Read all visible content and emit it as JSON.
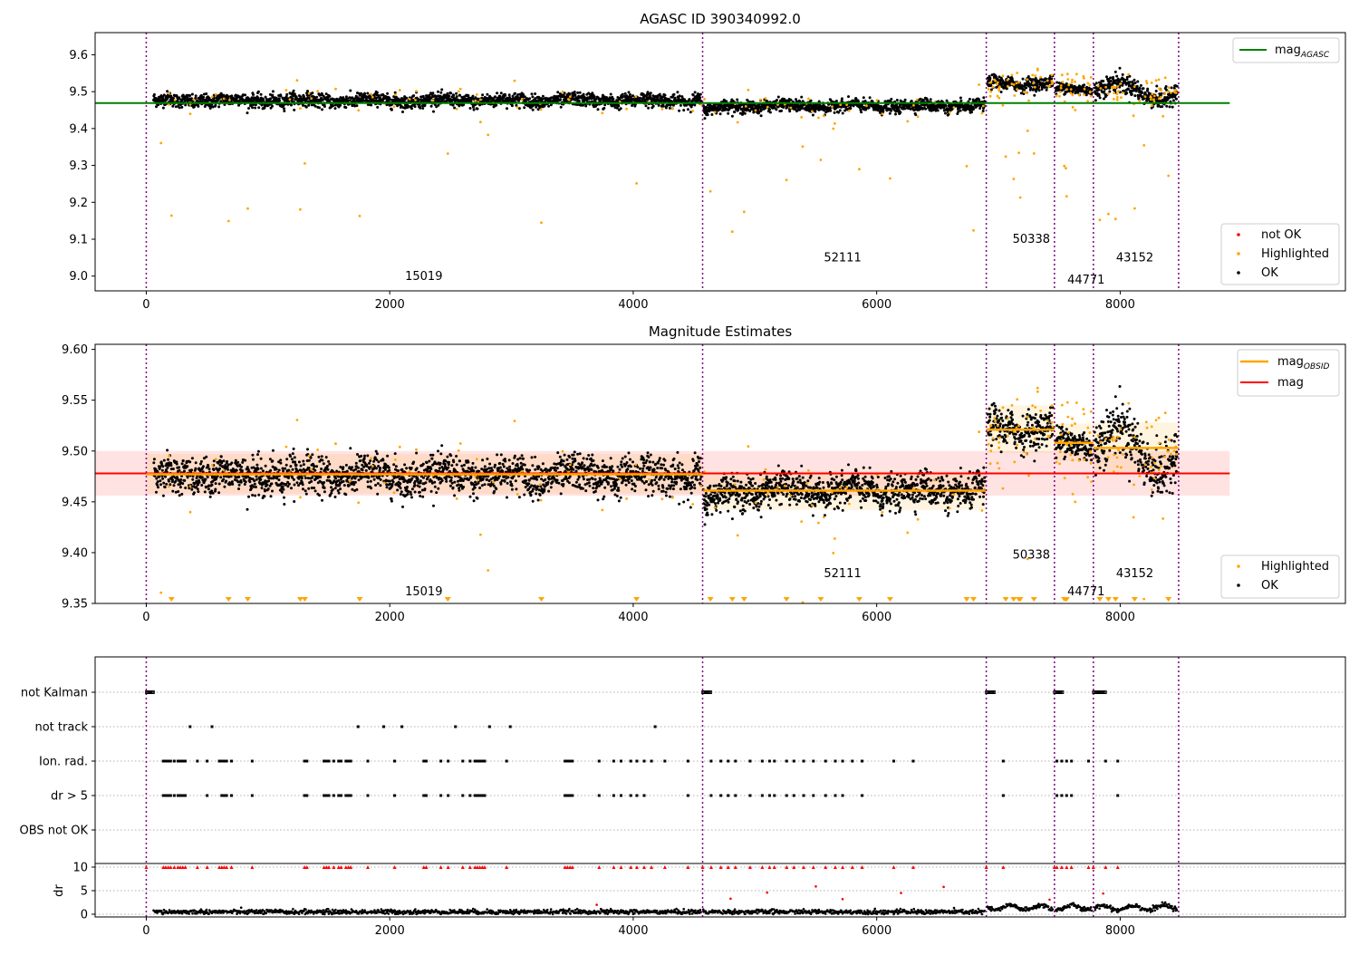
{
  "colors": {
    "ok": "#000000",
    "highlighted": "#ffa500",
    "not_ok": "#ff0000",
    "agasc_line": "#008000",
    "obsid_line": "#ffa500",
    "mag_line": "#ff0000",
    "mag_band": "#ffcccc",
    "obs_divider": "#800080",
    "grid": "#b0b0b0"
  },
  "chart_data": [
    {
      "type": "scatter",
      "title": "AGASC ID 390340992.0",
      "xlim": [
        -420,
        9850
      ],
      "ylim": [
        8.96,
        9.66
      ],
      "xticks": [
        0,
        2000,
        4000,
        6000,
        8000
      ],
      "yticks": [
        9.0,
        9.1,
        9.2,
        9.3,
        9.4,
        9.5,
        9.6
      ],
      "ytick_labels": [
        "9.0",
        "9.1",
        "9.2",
        "9.3",
        "9.4",
        "9.5",
        "9.6"
      ],
      "line_label": "mag_AGASC",
      "line_label_main": "mag",
      "line_label_sub": "AGASC",
      "mag_agasc": 9.469,
      "legend_points": [
        "not OK",
        "Highlighted",
        "OK"
      ],
      "legend_placement": "bottom-right"
    },
    {
      "type": "scatter",
      "title": "Magnitude Estimates",
      "xlim": [
        -420,
        9850
      ],
      "ylim": [
        9.35,
        9.605
      ],
      "xticks": [
        0,
        2000,
        4000,
        6000,
        8000
      ],
      "yticks": [
        9.35,
        9.4,
        9.45,
        9.5,
        9.55,
        9.6
      ],
      "ytick_labels": [
        "9.35",
        "9.40",
        "9.45",
        "9.50",
        "9.55",
        "9.60"
      ],
      "line_labels_main": [
        "mag",
        "mag"
      ],
      "line_labels_sub": [
        "OBSID",
        ""
      ],
      "mag": 9.478,
      "mag_band": [
        9.456,
        9.5
      ],
      "obsid_mag": [
        9.477,
        9.461,
        9.521,
        9.508,
        9.503
      ],
      "obsid_band": [
        [
          9.458,
          9.497
        ],
        [
          9.442,
          9.48
        ],
        [
          9.498,
          9.545
        ],
        [
          9.49,
          9.527
        ],
        [
          9.478,
          9.528
        ]
      ],
      "legend_points": [
        "Highlighted",
        "OK"
      ],
      "legend_placement": "bottom-right"
    },
    {
      "type": "scatter",
      "title": "",
      "xlim": [
        -420,
        9850
      ],
      "xticks": [
        0,
        2000,
        4000,
        6000,
        8000
      ],
      "flag_categories": [
        "not Kalman",
        "not track",
        "Ion. rad.",
        "dr > 5",
        "OBS not OK"
      ],
      "dr_ylabel": "dr",
      "dr_yticks": [
        0,
        5,
        10
      ],
      "dr_ylim": [
        -0.8,
        10.5
      ]
    }
  ],
  "observations": {
    "boundaries": [
      0,
      4570,
      6900,
      7460,
      7780,
      8480
    ],
    "obsids": [
      "15019",
      "52111",
      "50338",
      "44771",
      "43152"
    ],
    "label_x": [
      2280,
      5720,
      7270,
      7720,
      8120
    ],
    "label_y_top": [
      8.99,
      9.04,
      9.09,
      8.98,
      9.04
    ],
    "label_y_mid": [
      9.358,
      9.376,
      9.394,
      9.358,
      9.376
    ],
    "mag_levels": [
      9.477,
      9.461,
      9.521,
      9.508,
      9.503
    ]
  },
  "flag_events": {
    "not_kalman": [
      [
        0,
        60
      ],
      [
        4570,
        4640
      ],
      [
        6900,
        6970
      ],
      [
        7460,
        7530
      ],
      [
        7780,
        7880
      ]
    ],
    "not_track": [
      360,
      540,
      1740,
      1950,
      2100,
      2540,
      2820,
      2990,
      4180
    ],
    "ion_rad": [
      140,
      160,
      180,
      200,
      230,
      260,
      280,
      300,
      320,
      420,
      500,
      600,
      620,
      640,
      660,
      700,
      870,
      1300,
      1320,
      1460,
      1480,
      1500,
      1540,
      1580,
      1600,
      1640,
      1660,
      1680,
      1820,
      2040,
      2280,
      2300,
      2420,
      2480,
      2600,
      2660,
      2700,
      2720,
      2740,
      2760,
      2780,
      2960,
      3440,
      3460,
      3480,
      3500,
      3720,
      3840,
      3900,
      3980,
      4030,
      4090,
      4150,
      4260,
      4450,
      4640,
      4720,
      4780,
      4840,
      4960,
      5060,
      5120,
      5160,
      5260,
      5320,
      5400,
      5480,
      5580,
      5660,
      5720,
      5800,
      5880,
      6140,
      6300,
      7040,
      7480,
      7520,
      7560,
      7600,
      7740,
      7880,
      7980
    ],
    "dr_gt_5": [
      140,
      160,
      180,
      200,
      230,
      260,
      280,
      300,
      320,
      500,
      620,
      640,
      660,
      700,
      870,
      1300,
      1320,
      1460,
      1480,
      1500,
      1540,
      1580,
      1600,
      1640,
      1660,
      1680,
      1820,
      2040,
      2280,
      2300,
      2420,
      2480,
      2600,
      2660,
      2700,
      2720,
      2740,
      2760,
      2780,
      3440,
      3460,
      3480,
      3500,
      3720,
      3840,
      3900,
      3980,
      4030,
      4090,
      4450,
      4640,
      4720,
      4780,
      4840,
      4960,
      5060,
      5120,
      5160,
      5260,
      5320,
      5400,
      5480,
      5580,
      5660,
      5720,
      5880,
      7040,
      7480,
      7520,
      7560,
      7600,
      7980
    ],
    "obs_not_ok": []
  }
}
